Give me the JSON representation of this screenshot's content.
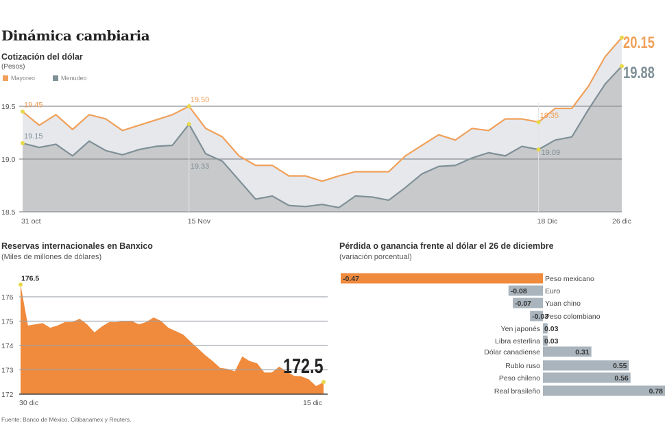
{
  "title": "Dinámica cambiaria",
  "source": "Fuente: Banco de México, Citibanamex y Reuters.",
  "chart_data": [
    {
      "type": "area",
      "title": "Cotización del dólar",
      "subtitle": "(Pesos)",
      "ylim": [
        18.5,
        20.2
      ],
      "yticks": [
        "19.5",
        "19.0",
        "18.5"
      ],
      "ytick_values": [
        19.5,
        19.0,
        18.5
      ],
      "grid": true,
      "legend_position": "top-left",
      "categories": [
        "31 oct",
        "",
        "",
        "",
        "",
        "",
        "",
        "",
        "",
        "",
        "15 Nov",
        "",
        "",
        "",
        "",
        "",
        "",
        "",
        "",
        "",
        "",
        "",
        "",
        "",
        "",
        "",
        "",
        "",
        "",
        "",
        "",
        "18 Dic",
        "",
        "",
        "",
        "",
        "26 dic"
      ],
      "series": [
        {
          "name": "Mayoreo",
          "color": "#f0a05a",
          "values": [
            19.45,
            19.32,
            19.42,
            19.28,
            19.42,
            19.38,
            19.27,
            19.32,
            19.37,
            19.42,
            19.5,
            19.29,
            19.21,
            19.03,
            18.94,
            18.94,
            18.84,
            18.84,
            18.79,
            18.84,
            18.88,
            18.88,
            18.88,
            19.03,
            19.13,
            19.23,
            19.18,
            19.29,
            19.27,
            19.38,
            19.38,
            19.35,
            19.48,
            19.48,
            19.69,
            19.97,
            20.15
          ]
        },
        {
          "name": "Menudeo",
          "color": "#7f9097",
          "values": [
            19.15,
            19.11,
            19.14,
            19.03,
            19.17,
            19.08,
            19.04,
            19.09,
            19.12,
            19.13,
            19.33,
            19.05,
            18.98,
            18.8,
            18.62,
            18.65,
            18.56,
            18.55,
            18.57,
            18.54,
            18.65,
            18.64,
            18.61,
            18.73,
            18.86,
            18.93,
            18.94,
            19.01,
            19.06,
            19.03,
            19.12,
            19.09,
            19.18,
            19.21,
            19.47,
            19.71,
            19.88
          ]
        }
      ],
      "annotations": [
        {
          "series": 0,
          "index": 0,
          "label": "19.45"
        },
        {
          "series": 1,
          "index": 0,
          "label": "19.15"
        },
        {
          "series": 0,
          "index": 10,
          "label": "19.50"
        },
        {
          "series": 1,
          "index": 10,
          "label": "19.33"
        },
        {
          "series": 0,
          "index": 31,
          "label": "19.35"
        },
        {
          "series": 1,
          "index": 31,
          "label": "19.09"
        },
        {
          "series": 0,
          "index": 36,
          "label": "20.15"
        },
        {
          "series": 1,
          "index": 36,
          "label": "19.88"
        }
      ]
    },
    {
      "type": "area",
      "title": "Reservas internacionales en Banxico",
      "subtitle": "(Miles de millones de dólares)",
      "color": "#f08a3c",
      "ylim": [
        172,
        176.6
      ],
      "yticks": [
        "176",
        "175",
        "174",
        "173",
        "172"
      ],
      "ytick_values": [
        176,
        175,
        174,
        173,
        172
      ],
      "grid": true,
      "categories": [
        "30 dic",
        "",
        "",
        "",
        "",
        "",
        "",
        "",
        "",
        "",
        "",
        "",
        "",
        "",
        "",
        "",
        "",
        "",
        "",
        "",
        "",
        "",
        "",
        "",
        "",
        "",
        "",
        "",
        "",
        "",
        "",
        "",
        "",
        "",
        "",
        "",
        "",
        "",
        "",
        "",
        "",
        "15 dic"
      ],
      "values": [
        176.5,
        174.82,
        174.87,
        174.92,
        174.73,
        174.82,
        174.96,
        174.96,
        175.1,
        174.87,
        174.54,
        174.78,
        174.96,
        174.96,
        175.01,
        175.01,
        174.87,
        174.96,
        175.15,
        175.01,
        174.73,
        174.59,
        174.45,
        174.16,
        173.88,
        173.6,
        173.36,
        173.08,
        173.04,
        172.94,
        173.55,
        173.36,
        173.27,
        172.89,
        172.89,
        173.13,
        172.94,
        172.75,
        172.73,
        172.61,
        172.33,
        172.5
      ],
      "annotations": [
        {
          "index": 0,
          "label": "176.5"
        },
        {
          "index": 41,
          "label": "172.5"
        }
      ]
    },
    {
      "type": "bar",
      "orientation": "horizontal",
      "title": "Pérdida o ganancia frente al dólar el 26 de diciembre",
      "subtitle": "(variación porcentual)",
      "highlight_color": "#f08a3c",
      "bar_color": "#a9b4bc",
      "categories": [
        "Peso mexicano",
        "Euro",
        "Yuan chino",
        "Peso colombiano",
        "Yen japonés",
        "Libra esterlina",
        "Dólar canadiense",
        "Rublo ruso",
        "Peso chileno",
        "Real brasileño"
      ],
      "values": [
        -0.47,
        -0.08,
        -0.07,
        -0.03,
        0.03,
        0.03,
        0.31,
        0.55,
        0.56,
        0.78
      ],
      "labels": [
        "-0.47",
        "-0.08",
        "-0.07",
        "-0.03",
        "0.03",
        "0.03",
        "0.31",
        "0.55",
        "0.56",
        "0.78"
      ],
      "highlight": "Peso mexicano"
    }
  ]
}
